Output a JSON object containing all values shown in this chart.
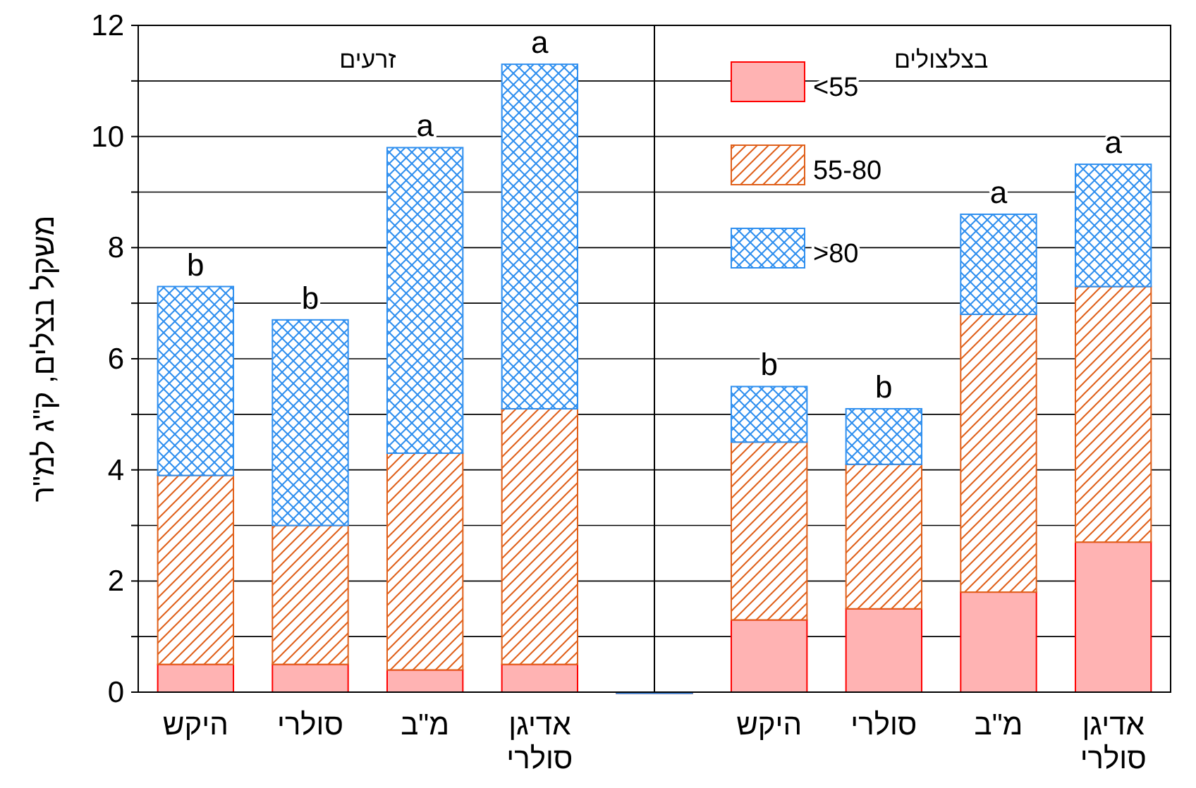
{
  "chart_data": {
    "type": "bar",
    "stacked": true,
    "ylabel": "משקל בצלים, ק\"ג למ\"ר",
    "categories": [
      "היקש",
      "סולרי",
      "מ\"ב",
      "אדיגן סולרי",
      null,
      "היקש",
      "סולרי",
      "מ\"ב",
      "אדיגן סולרי"
    ],
    "series": [
      {
        "name": "<55",
        "color": "#ffb3b3",
        "values": [
          0.5,
          0.5,
          0.4,
          0.5,
          0,
          1.3,
          1.5,
          1.8,
          2.7
        ]
      },
      {
        "name": "55-80",
        "color": "#e0601a",
        "values": [
          3.4,
          2.5,
          3.9,
          4.6,
          0,
          3.2,
          2.6,
          5.0,
          4.6
        ]
      },
      {
        "name": ">80",
        "color": "#2f8fef",
        "values": [
          3.4,
          3.7,
          5.5,
          6.2,
          0,
          1.0,
          1.0,
          1.8,
          2.2
        ]
      }
    ],
    "ylim": [
      0,
      12
    ],
    "yticks": [
      0,
      {
        "value": 1,
        "label": null
      },
      2,
      {
        "value": 3,
        "label": null
      },
      4,
      {
        "value": 5,
        "label": null
      },
      6,
      {
        "value": 7,
        "label": null
      },
      8,
      {
        "value": 9,
        "label": null
      },
      10,
      {
        "value": 11,
        "label": null
      },
      12
    ],
    "grid": "y",
    "legend": "top right",
    "annotations": [
      "זרעים",
      "בצלצולים",
      "b",
      "b",
      "a",
      "a",
      "b",
      "b",
      "a",
      "a"
    ]
  }
}
